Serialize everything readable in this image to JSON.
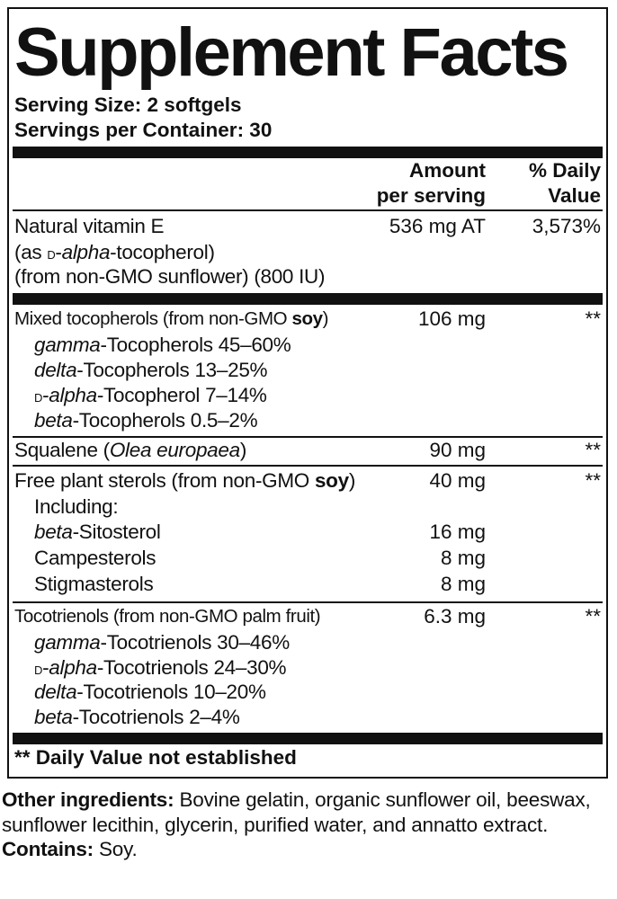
{
  "title": "Supplement Facts",
  "serving_size": "Serving Size: 2 softgels",
  "servings_per_container": "Servings per Container: 30",
  "header": {
    "amount_line1": "Amount",
    "amount_line2": "per serving",
    "dv_line1": "% Daily",
    "dv_line2": "Value"
  },
  "rows": [
    {
      "label": [
        {
          "t": "Natural vitamin E"
        }
      ],
      "amount": "536 mg AT",
      "dv": "3,573%"
    },
    {
      "label": [
        {
          "t": "(as "
        },
        {
          "t": "d",
          "s": "sc"
        },
        {
          "t": "-"
        },
        {
          "t": "alpha",
          "s": "i"
        },
        {
          "t": "-tocopherol)"
        }
      ]
    },
    {
      "label": [
        {
          "t": "(from non-GMO sunflower) (800 IU)"
        }
      ]
    },
    {
      "label": [
        {
          "t": "Mixed tocopherols (from non-GMO "
        },
        {
          "t": "soy",
          "s": "b"
        },
        {
          "t": ")"
        }
      ],
      "amount": "106 mg",
      "dv": "**",
      "small": true
    },
    {
      "label": [
        {
          "t": "gamma",
          "s": "i"
        },
        {
          "t": "-Tocopherols 45–60%"
        }
      ],
      "indent": true
    },
    {
      "label": [
        {
          "t": "delta",
          "s": "i"
        },
        {
          "t": "-Tocopherols 13–25%"
        }
      ],
      "indent": true
    },
    {
      "label": [
        {
          "t": "d",
          "s": "sc"
        },
        {
          "t": "-"
        },
        {
          "t": "alpha",
          "s": "i"
        },
        {
          "t": "-Tocopherol 7–14%"
        }
      ],
      "indent": true
    },
    {
      "label": [
        {
          "t": "beta",
          "s": "i"
        },
        {
          "t": "-Tocopherols 0.5–2%"
        }
      ],
      "indent": true
    },
    {
      "label": [
        {
          "t": "Squalene ("
        },
        {
          "t": "Olea europaea",
          "s": "i"
        },
        {
          "t": ")"
        }
      ],
      "amount": "90 mg",
      "dv": "**"
    },
    {
      "label": [
        {
          "t": "Free plant sterols (from non-GMO "
        },
        {
          "t": "soy",
          "s": "b"
        },
        {
          "t": ")"
        }
      ],
      "amount": "40 mg",
      "dv": "**"
    },
    {
      "label": [
        {
          "t": "Including:"
        }
      ],
      "indent": true
    },
    {
      "label": [
        {
          "t": "beta",
          "s": "i"
        },
        {
          "t": "-Sitosterol"
        }
      ],
      "amount": "16 mg",
      "indent": true
    },
    {
      "label": [
        {
          "t": "Campesterols"
        }
      ],
      "amount": "8 mg",
      "indent": true
    },
    {
      "label": [
        {
          "t": "Stigmasterols"
        }
      ],
      "amount": "8 mg",
      "indent": true
    },
    {
      "label": [
        {
          "t": "Tocotrienols (from non-GMO palm fruit)"
        }
      ],
      "amount": "6.3 mg",
      "dv": "**",
      "small": true
    },
    {
      "label": [
        {
          "t": "gamma",
          "s": "i"
        },
        {
          "t": "-Tocotrienols 30–46%"
        }
      ],
      "indent": true
    },
    {
      "label": [
        {
          "t": "d",
          "s": "sc"
        },
        {
          "t": "-"
        },
        {
          "t": "alpha",
          "s": "i"
        },
        {
          "t": "-Tocotrienols 24–30%"
        }
      ],
      "indent": true
    },
    {
      "label": [
        {
          "t": "delta",
          "s": "i"
        },
        {
          "t": "-Tocotrienols 10–20%"
        }
      ],
      "indent": true
    },
    {
      "label": [
        {
          "t": "beta",
          "s": "i"
        },
        {
          "t": "-Tocotrienols 2–4%"
        }
      ],
      "indent": true
    }
  ],
  "footnote": "** Daily Value not established",
  "other_ingredients": {
    "label": "Other ingredients:",
    "text": " Bovine gelatin, organic sunflower oil, beeswax, sunflower lecithin, glycerin, purified water, and annatto extract."
  },
  "contains": {
    "label": "Contains:",
    "text": " Soy."
  }
}
